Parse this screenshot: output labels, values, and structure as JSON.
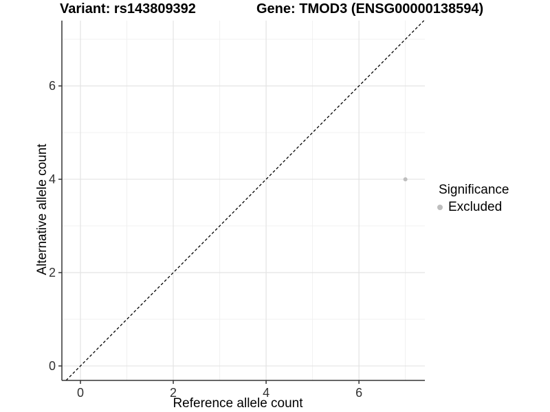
{
  "chart_data": {
    "type": "scatter",
    "title_variant": "Variant: rs143809392",
    "title_gene": "Gene: TMOD3 (ENSG00000138594)",
    "xlabel": "Reference allele count",
    "ylabel": "Alternative allele count",
    "xlim": [
      -0.4,
      7.42
    ],
    "ylim": [
      -0.31,
      7.4
    ],
    "x_major_ticks": [
      0,
      2,
      4,
      6
    ],
    "y_major_ticks": [
      0,
      2,
      4,
      6
    ],
    "x_minor_ticks": [
      1,
      3,
      5,
      7
    ],
    "y_minor_ticks": [
      1,
      3,
      5,
      7
    ],
    "grid": "major+minor",
    "reference_line": {
      "type": "identity",
      "slope": 1,
      "intercept": 0,
      "style": "dashed"
    },
    "series": [
      {
        "name": "Excluded",
        "points": [
          {
            "x": 7,
            "y": 4
          }
        ]
      }
    ],
    "legend": {
      "title": "Significance",
      "position": "right",
      "entries": [
        {
          "label": "Excluded"
        }
      ]
    }
  },
  "colors": {
    "background": "#ffffff",
    "point": "#bebebe",
    "legend_point": "#bebebe",
    "identity_line": "#000000",
    "axis_line": "#333333",
    "tick_text": "#303030",
    "grid_major": "#e3e3e3",
    "grid_minor": "#f0f0f0",
    "text": "#000000"
  }
}
